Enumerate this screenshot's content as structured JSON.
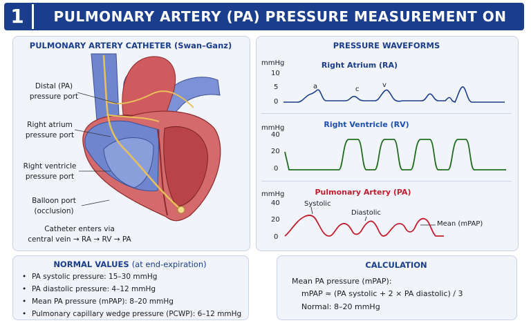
{
  "header": {
    "number": "1",
    "title": "PULMONARY ARTERY (PA) PRESSURE MEASUREMENT ON PAC"
  },
  "catheter_panel": {
    "title": "PULMONARY ARTERY CATHETER (Swan–Ganz)",
    "labels": {
      "distal_1": "Distal (PA)",
      "distal_2": "pressure port",
      "ra_1": "Right atrium",
      "ra_2": "pressure port",
      "rv_1": "Right ventricle",
      "rv_2": "pressure port",
      "balloon_1": "Balloon port",
      "balloon_2": "(occlusion)"
    },
    "caption_1": "Catheter enters via",
    "caption_2": "central vein → RA → RV → PA",
    "colors": {
      "venous": "#5b73c4",
      "arterial": "#c8474b",
      "catheter": "#e8c15a"
    }
  },
  "waveforms_panel": {
    "title": "PRESSURE WAVEFORMS",
    "unit": "mmHg",
    "ra": {
      "title": "Right Atrium (RA)",
      "color": "#1a3d8c",
      "ticks": [
        "10",
        "5",
        "0"
      ],
      "wave_labels": [
        "a",
        "c",
        "v"
      ]
    },
    "rv": {
      "title": "Right Ventricle (RV)",
      "color": "#1f6b1f",
      "ticks": [
        "40",
        "20",
        "0"
      ]
    },
    "pa": {
      "title": "Pulmonary Artery (PA)",
      "color": "#c21d2e",
      "ticks": [
        "40",
        "20",
        "0"
      ],
      "annotations": {
        "systolic": "Systolic",
        "diastolic": "Diastolic",
        "mean": "Mean (mPAP)"
      }
    }
  },
  "normal_values": {
    "title": "NORMAL VALUES",
    "title_suffix": "(at end-expiration)",
    "items": [
      "PA systolic pressure: 15–30 mmHg",
      "PA diastolic pressure: 4–12 mmHg",
      "Mean PA pressure (mPAP): 8–20 mmHg",
      "Pulmonary capillary wedge pressure (PCWP): 6–12 mmHg"
    ]
  },
  "calculation": {
    "title": "CALCULATION",
    "line1": "Mean PA pressure (mPAP):",
    "line2": "mPAP ≈ (PA systolic + 2 × PA diastolic) / 3",
    "line3": "Normal: 8–20 mmHg"
  }
}
